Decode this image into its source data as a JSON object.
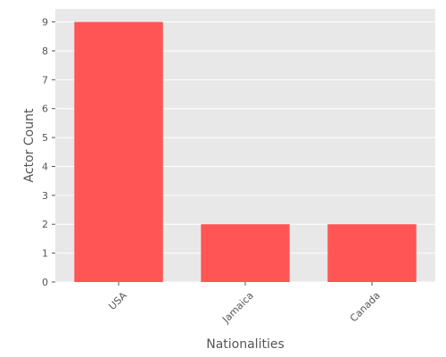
{
  "chart_data": {
    "type": "bar",
    "title": "",
    "xlabel": "Nationalities",
    "ylabel": "Actor Count",
    "categories": [
      "USA",
      "Jamaica",
      "Canada"
    ],
    "values": [
      9,
      2,
      2
    ],
    "ylim": [
      0,
      9.45
    ],
    "yticks": [
      0,
      1,
      2,
      3,
      4,
      5,
      6,
      7,
      8,
      9
    ],
    "grid": true,
    "legend": "none",
    "colors": {
      "bar": "#ff5555",
      "plot_background": "#e8e8e8",
      "grid": "#ffffff",
      "text": "#555555"
    }
  }
}
